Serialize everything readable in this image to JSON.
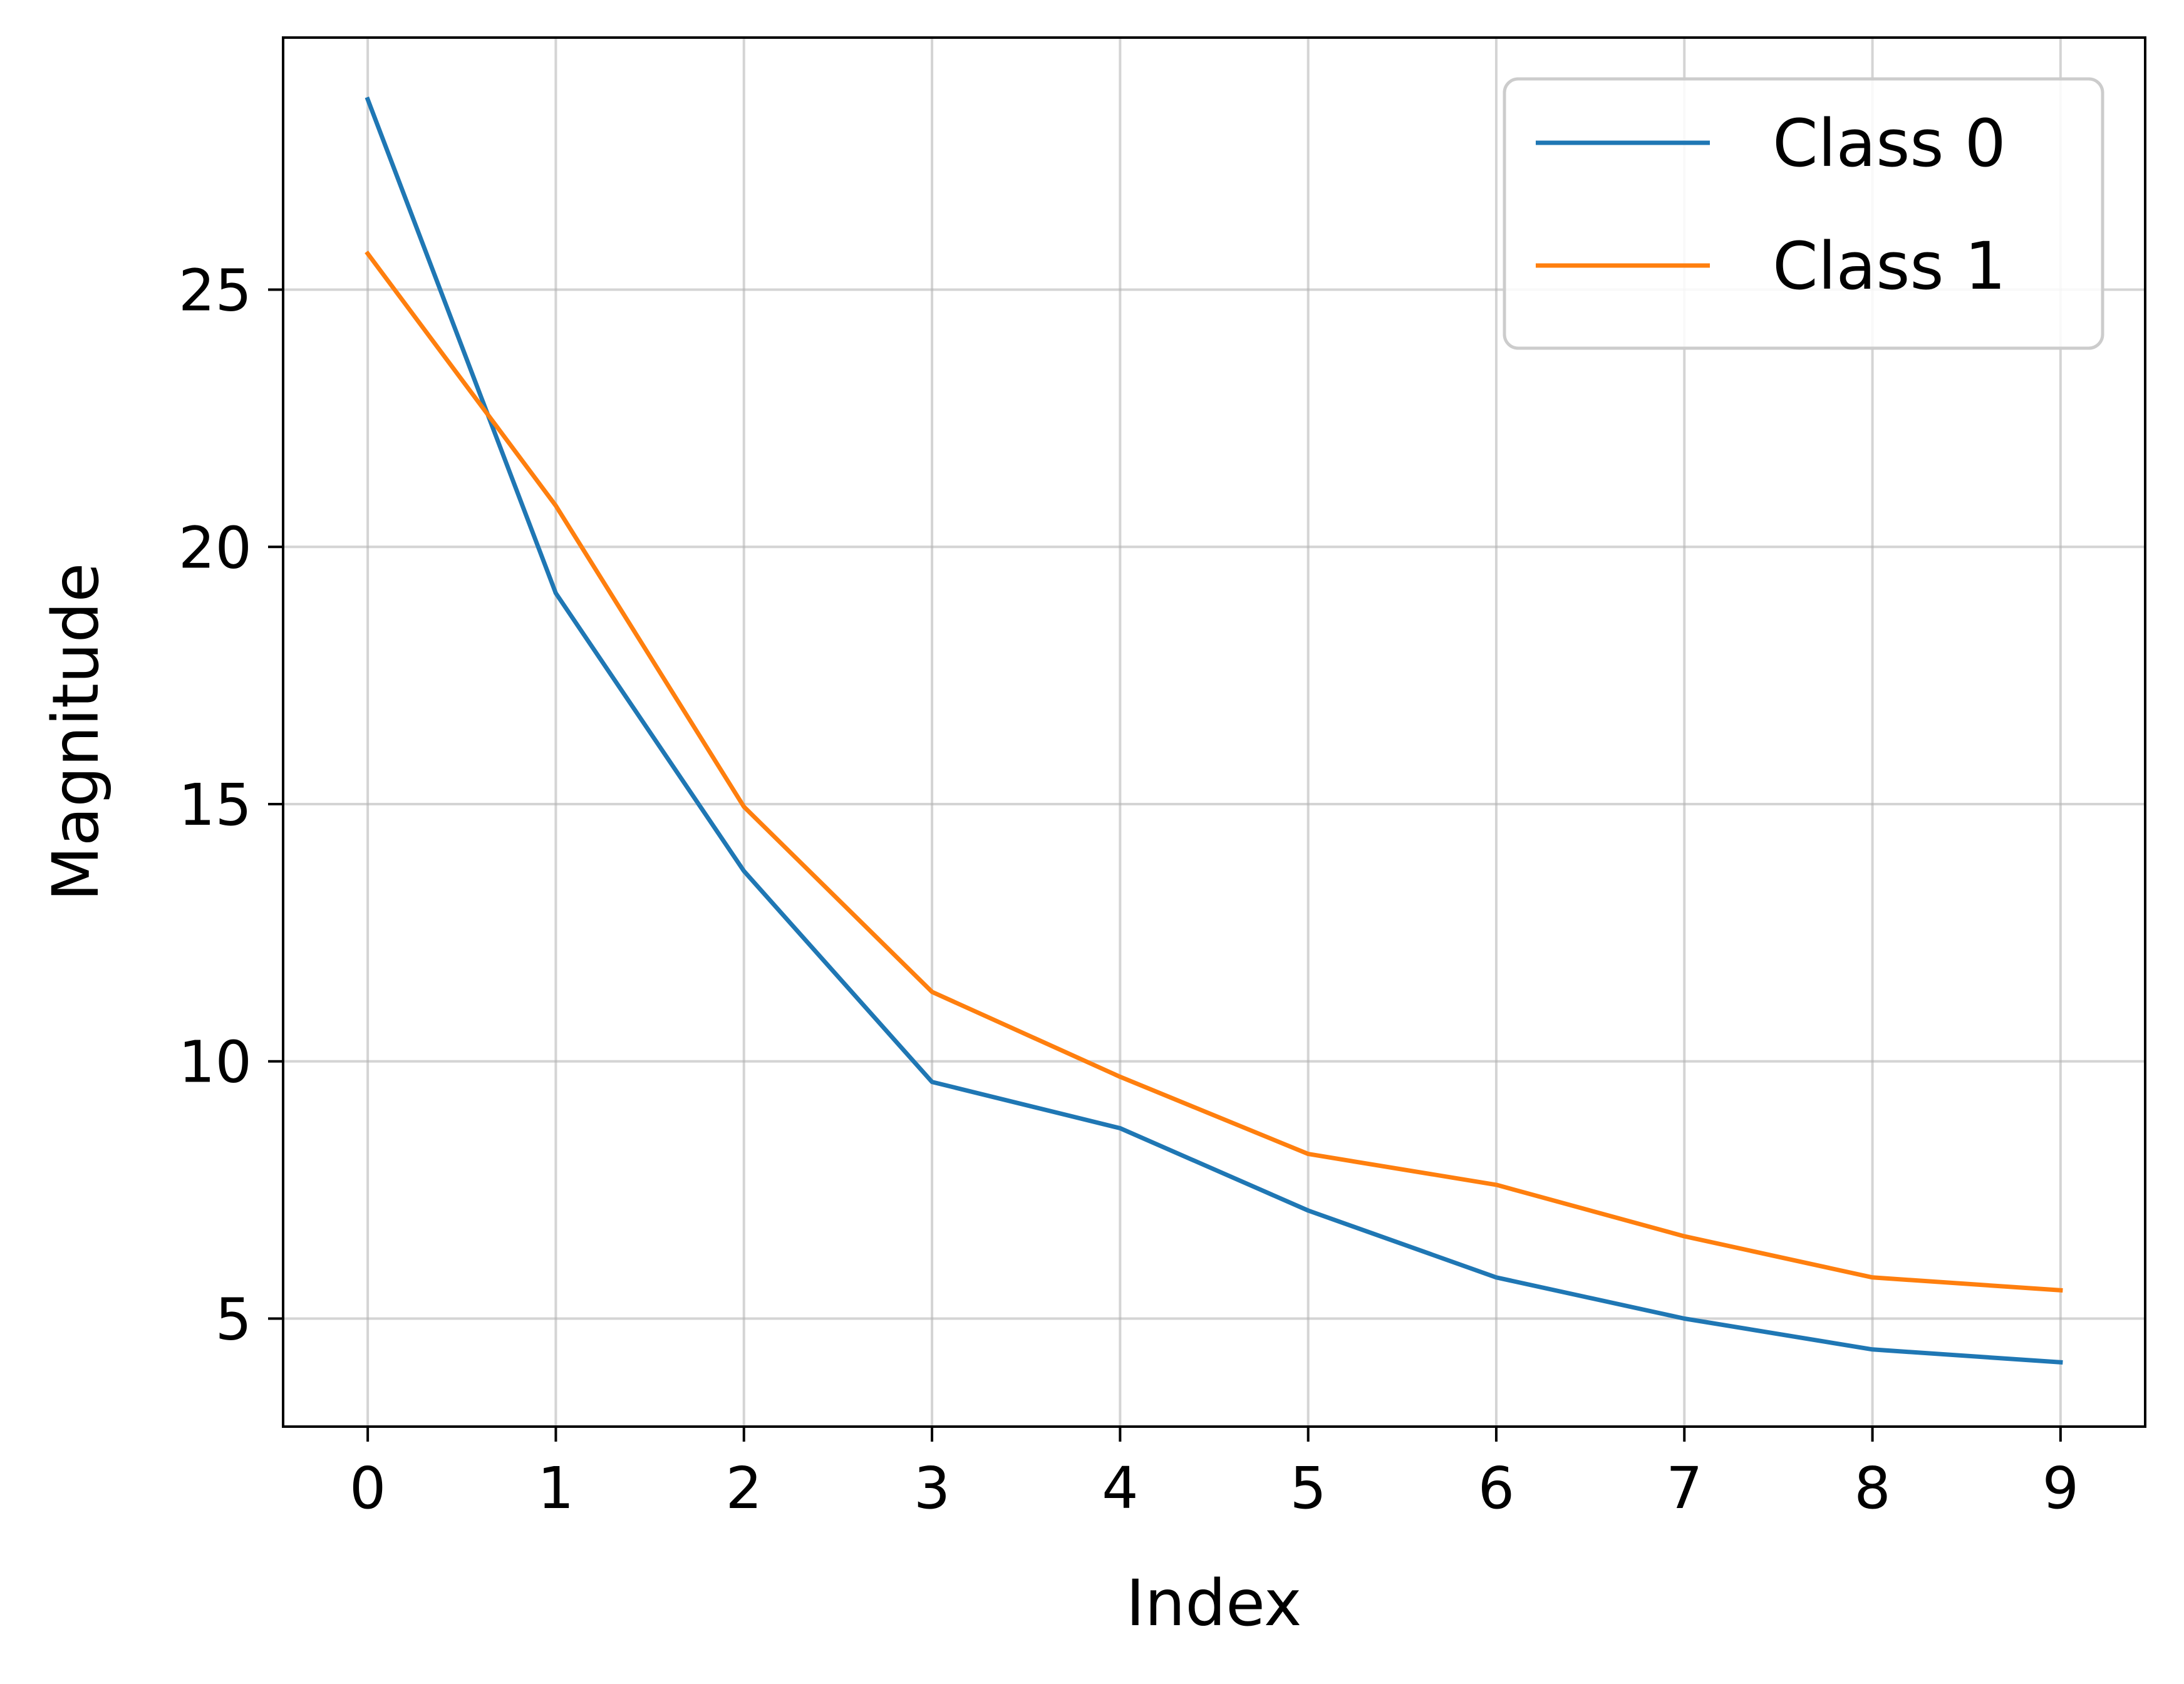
{
  "chart_data": {
    "type": "line",
    "title": "",
    "xlabel": "Index",
    "ylabel": "Magnitude",
    "xlim": [
      -0.45,
      9.45
    ],
    "ylim": [
      2.9,
      29.9
    ],
    "x": [
      0,
      1,
      2,
      3,
      4,
      5,
      6,
      7,
      8,
      9
    ],
    "xticks": [
      "0",
      "1",
      "2",
      "3",
      "4",
      "5",
      "6",
      "7",
      "8",
      "9"
    ],
    "yticks": [
      5,
      10,
      15,
      20,
      25
    ],
    "ytick_labels": [
      "5",
      "10",
      "15",
      "20",
      "25"
    ],
    "grid": true,
    "legend_position": "upper-right",
    "series": [
      {
        "name": "Class 0",
        "color": "#1f77b4",
        "values": [
          28.7,
          19.1,
          13.7,
          9.6,
          8.7,
          7.1,
          5.8,
          5.0,
          4.4,
          4.15
        ]
      },
      {
        "name": "Class 1",
        "color": "#ff7f0e",
        "values": [
          25.7,
          20.8,
          14.95,
          11.35,
          9.7,
          8.2,
          7.6,
          6.6,
          5.8,
          5.55
        ]
      }
    ]
  }
}
